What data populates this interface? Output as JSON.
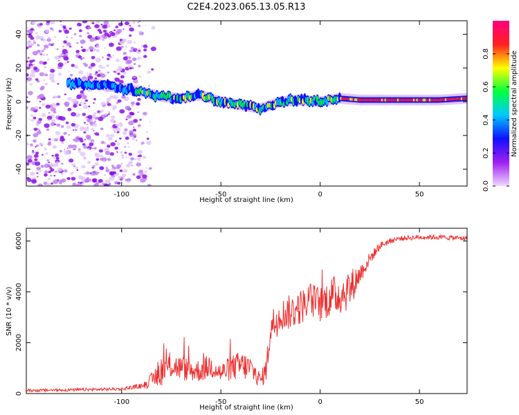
{
  "title": "C2E4.2023.065.13.05.R13",
  "colors": {
    "snr_line": "#ee3030",
    "frame": "#000000"
  },
  "chart_data": [
    {
      "type": "heatmap",
      "xlabel": "Height of straight line (km)",
      "ylabel": "Frequency (Hz)",
      "xlim": [
        -148,
        74
      ],
      "ylim": [
        -50,
        48
      ],
      "xticks": [
        -100,
        -50,
        0,
        50
      ],
      "yticks": [
        -40,
        -20,
        0,
        20,
        40
      ],
      "colorbar": {
        "label": "Normalized spectral amplitude",
        "ticks": [
          "0.0",
          "0.2",
          "0.4",
          "0.6",
          "0.8"
        ],
        "colormap": [
          "#f0d8ff",
          "#a020f0",
          "#1010ff",
          "#00c8ff",
          "#00ff40",
          "#ffff00",
          "#ff2020",
          "#ff0080"
        ]
      },
      "ridge": {
        "x": [
          -125,
          -110,
          -100,
          -90,
          -80,
          -70,
          -60,
          -50,
          -40,
          -30,
          -25,
          -20,
          -10,
          0,
          10,
          20,
          30,
          40,
          50,
          60,
          74
        ],
        "frequency": [
          11,
          10,
          8,
          6,
          3,
          2,
          4,
          0,
          -2,
          -4,
          -2,
          0,
          1,
          0,
          2,
          1,
          1,
          1,
          1,
          1,
          2
        ]
      }
    },
    {
      "type": "line",
      "xlabel": "Height of straight line (km)",
      "ylabel": "SNR (10 * v/v)",
      "xlim": [
        -148,
        74
      ],
      "ylim": [
        0,
        6500
      ],
      "xticks": [
        -100,
        -50,
        0,
        50
      ],
      "yticks": [
        0,
        2000,
        4000,
        6000
      ],
      "x": [
        -148,
        -120,
        -100,
        -90,
        -85,
        -80,
        -75,
        -70,
        -65,
        -60,
        -55,
        -50,
        -45,
        -40,
        -35,
        -30,
        -27,
        -25,
        -22,
        -20,
        -15,
        -10,
        -5,
        0,
        5,
        10,
        15,
        20,
        25,
        30,
        35,
        40,
        50,
        60,
        74
      ],
      "base": [
        120,
        150,
        180,
        300,
        500,
        900,
        1100,
        1000,
        900,
        900,
        1100,
        800,
        1000,
        1100,
        1000,
        500,
        1000,
        2600,
        2900,
        3100,
        3200,
        3400,
        3700,
        3500,
        3800,
        3900,
        4100,
        4700,
        5300,
        5800,
        6000,
        6100,
        6150,
        6150,
        6100
      ],
      "noise": [
        60,
        60,
        60,
        100,
        300,
        600,
        500,
        500,
        450,
        450,
        500,
        400,
        500,
        600,
        500,
        300,
        500,
        700,
        700,
        600,
        700,
        700,
        700,
        700,
        800,
        800,
        800,
        400,
        250,
        150,
        120,
        100,
        100,
        100,
        100
      ]
    }
  ]
}
